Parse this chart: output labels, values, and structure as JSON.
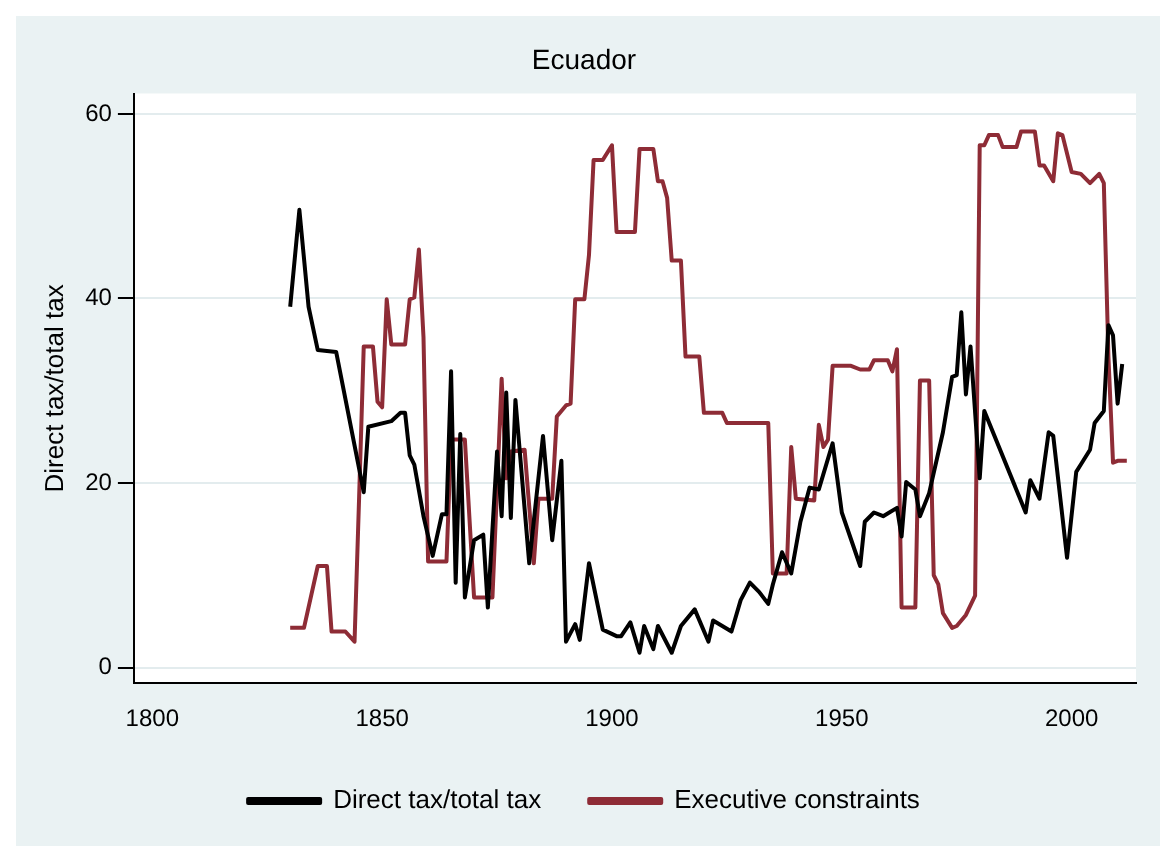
{
  "chart_data": {
    "type": "line",
    "title": "Ecuador",
    "ylabel": "Direct tax/total tax",
    "xlim": [
      1796,
      2014
    ],
    "xticks": [
      1800,
      1850,
      1900,
      1950,
      2000
    ],
    "ylim": [
      -1.7,
      62.2
    ],
    "yticks": [
      0,
      20,
      40,
      60
    ],
    "grid": "y",
    "legend": "bottom",
    "marker": "none",
    "line_style": "solid",
    "series": [
      {
        "name": "Direct tax/total tax",
        "color": "#000000",
        "x": [
          1830,
          1832,
          1834,
          1836,
          1840,
          1846,
          1847,
          1852,
          1854,
          1855,
          1856,
          1857,
          1859,
          1861,
          1863,
          1864,
          1865,
          1866,
          1867,
          1868,
          1869,
          1870,
          1872,
          1873,
          1875,
          1876,
          1877,
          1878,
          1879,
          1882,
          1885,
          1887,
          1889,
          1890,
          1892,
          1893,
          1895,
          1898,
          1901,
          1902,
          1904,
          1906,
          1907,
          1909,
          1910,
          1913,
          1915,
          1918,
          1921,
          1922,
          1926,
          1928,
          1930,
          1932,
          1934,
          1935,
          1937,
          1939,
          1941,
          1943,
          1945,
          1948,
          1950,
          1954,
          1955,
          1957,
          1959,
          1962,
          1963,
          1964,
          1966,
          1967,
          1969,
          1972,
          1974,
          1975,
          1976,
          1977,
          1978,
          1980,
          1981,
          1990,
          1991,
          1993,
          1995,
          1996,
          1999,
          2001,
          2002,
          2004,
          2005,
          2007,
          2008,
          2009,
          2010,
          2011
        ],
        "values": [
          39.1,
          49.6,
          39.1,
          34.4,
          34.2,
          19,
          26.1,
          26.7,
          27.6,
          27.6,
          23,
          22,
          16.4,
          12.1,
          16.6,
          16.6,
          32.1,
          9.2,
          25.3,
          7.6,
          10.7,
          13.8,
          14.4,
          6.5,
          23.4,
          16.4,
          29.8,
          16.2,
          29,
          11.3,
          25.1,
          13.8,
          22.4,
          2.8,
          4.7,
          3,
          11.3,
          4.1,
          3.4,
          3.4,
          4.9,
          1.6,
          4.5,
          2,
          4.5,
          1.6,
          4.5,
          6.3,
          2.8,
          5.1,
          3.9,
          7.3,
          9.2,
          8.2,
          6.9,
          9,
          12.5,
          10.2,
          15.8,
          19.5,
          19.3,
          24.3,
          16.8,
          11,
          15.8,
          16.8,
          16.4,
          17.3,
          14.2,
          20.1,
          19.3,
          16.4,
          18.9,
          25.5,
          31.5,
          31.7,
          38.5,
          29.6,
          34.8,
          20.5,
          27.8,
          16.8,
          20.3,
          18.3,
          25.5,
          25.1,
          11.9,
          21.2,
          22,
          23.6,
          26.5,
          27.8,
          37.1,
          36,
          28.6,
          32.9
        ]
      },
      {
        "name": "Executive constraints",
        "color": "#8e2c36",
        "x": [
          1830,
          1833,
          1836,
          1838,
          1839,
          1842,
          1844,
          1845,
          1846,
          1848,
          1849,
          1850,
          1851,
          1852,
          1855,
          1856,
          1857,
          1858,
          1859,
          1860,
          1864,
          1865,
          1868,
          1870,
          1874,
          1876,
          1877,
          1878,
          1881,
          1883,
          1884,
          1887,
          1888,
          1890,
          1891,
          1892,
          1894,
          1895,
          1896,
          1898,
          1900,
          1901,
          1905,
          1906,
          1909,
          1910,
          1911,
          1912,
          1913,
          1915,
          1916,
          1919,
          1920,
          1924,
          1925,
          1934,
          1935,
          1938,
          1939,
          1940,
          1944,
          1945,
          1946,
          1947,
          1948,
          1952,
          1954,
          1956,
          1957,
          1960,
          1961,
          1962,
          1963,
          1966,
          1967,
          1969,
          1970,
          1971,
          1972,
          1974,
          1975,
          1977,
          1979,
          1980,
          1981,
          1982,
          1984,
          1985,
          1988,
          1989,
          1992,
          1993,
          1994,
          1996,
          1997,
          1998,
          2000,
          2002,
          2004,
          2006,
          2007,
          2008,
          2009,
          2010,
          2012
        ],
        "values": [
          4.3,
          4.3,
          11,
          11,
          3.9,
          3.9,
          2.8,
          18.5,
          34.8,
          34.8,
          28.8,
          28.2,
          39.9,
          35,
          35,
          39.9,
          40.1,
          45.3,
          35.8,
          11.5,
          11.5,
          24.7,
          24.7,
          7.6,
          7.6,
          31.3,
          20.5,
          23.4,
          23.6,
          11.3,
          18.3,
          18.3,
          27.2,
          28.4,
          28.6,
          39.9,
          39.9,
          44.7,
          55,
          55,
          56.6,
          47.2,
          47.2,
          56.2,
          56.2,
          52.7,
          52.7,
          50.9,
          44.1,
          44.1,
          33.7,
          33.7,
          27.6,
          27.6,
          26.5,
          26.5,
          10.2,
          10.2,
          23.9,
          18.3,
          18.1,
          26.3,
          23.9,
          24.7,
          32.7,
          32.7,
          32.3,
          32.3,
          33.3,
          33.3,
          32.1,
          34.5,
          6.5,
          6.5,
          31.1,
          31.1,
          10,
          9,
          5.9,
          4.3,
          4.5,
          5.7,
          7.8,
          56.6,
          56.6,
          57.7,
          57.7,
          56.4,
          56.4,
          58.1,
          58.1,
          54.4,
          54.4,
          52.7,
          57.9,
          57.7,
          53.7,
          53.5,
          52.5,
          53.5,
          52.5,
          33.7,
          22.2,
          22.4,
          22.4
        ]
      }
    ]
  }
}
